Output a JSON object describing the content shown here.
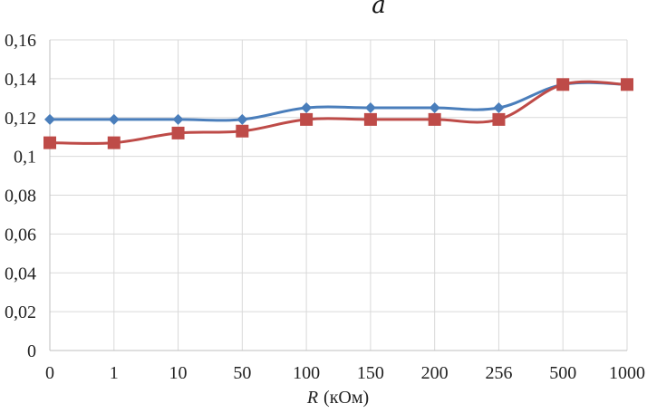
{
  "panel_label": "a",
  "chart_data": {
    "type": "line",
    "title": "",
    "xlabel_var": "R",
    "xlabel_unit": "(кОм)",
    "ylabel": "",
    "categories": [
      "0",
      "1",
      "10",
      "50",
      "100",
      "150",
      "200",
      "256",
      "500",
      "1000"
    ],
    "ylim": [
      0,
      0.16
    ],
    "yticks": [
      "0",
      "0,02",
      "0,04",
      "0,06",
      "0,08",
      "0,1",
      "0,12",
      "0,14",
      "0,16"
    ],
    "grid": "vertical and horizontal",
    "legend": "none",
    "series": [
      {
        "values": [
          0.119,
          0.119,
          0.119,
          0.119,
          0.125,
          0.125,
          0.125,
          0.125,
          0.137,
          0.137
        ],
        "color": "#4a7ebb",
        "marker": "diamond"
      },
      {
        "values": [
          0.107,
          0.107,
          0.112,
          0.113,
          0.119,
          0.119,
          0.119,
          0.119,
          0.137,
          0.137
        ],
        "color": "#be4b48",
        "marker": "square"
      }
    ]
  }
}
